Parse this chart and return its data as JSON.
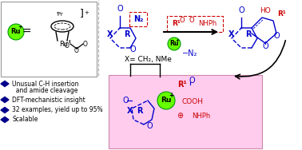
{
  "bg_color": "#ffffff",
  "ru_green": "#66ff00",
  "ru_border": "#009900",
  "blue_text": "#0000cc",
  "red_text": "#cc0000",
  "black_text": "#000000",
  "pink_box": "#ffccee",
  "pink_border": "#cc88aa",
  "diamond_color": "#00008b",
  "bullet_points": [
    "Unusual C-H insertion",
    "  and amide cleavage",
    "DFT-mechanistic insight",
    "32 examples, yield up to 95%",
    "Scalable"
  ],
  "bullet_has_diamond": [
    true,
    false,
    true,
    true,
    true
  ],
  "x_label": "X= CH₂, NMe",
  "minus_n2": "−N₂",
  "figsize": [
    3.78,
    1.88
  ],
  "dpi": 100
}
